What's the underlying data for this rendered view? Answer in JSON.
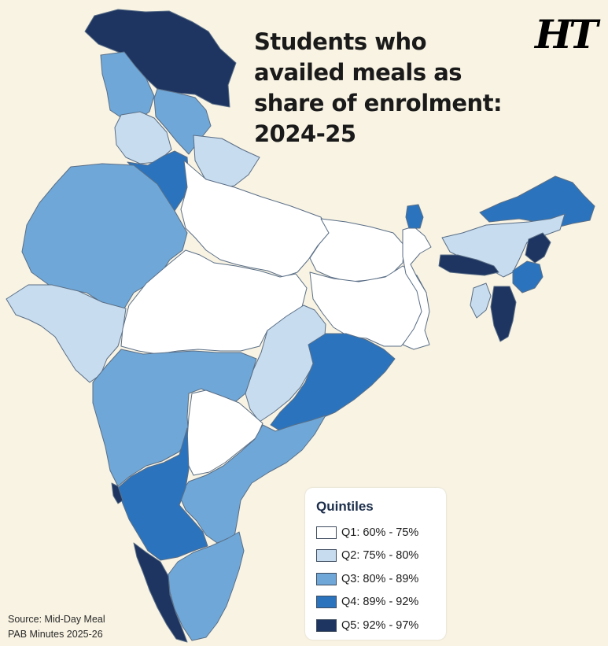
{
  "title_lines": [
    "Students who",
    "availed meals as",
    "share of enrolment:",
    "2024-25"
  ],
  "logo_text": "HT",
  "legend": {
    "title": "Quintiles",
    "items": [
      {
        "label": "Q1: 60% - 75%",
        "color": "#ffffff"
      },
      {
        "label": "Q2: 75% - 80%",
        "color": "#c8dcef"
      },
      {
        "label": "Q3: 80% - 89%",
        "color": "#6fa8d8"
      },
      {
        "label": "Q4: 89% - 92%",
        "color": "#2b74bd"
      },
      {
        "label": "Q5: 92% - 97%",
        "color": "#1e3561"
      }
    ]
  },
  "source_lines": [
    "Source: Mid-Day Meal",
    "PAB Minutes 2025-26"
  ],
  "colors": {
    "background": "#f8f3e3",
    "state_border": "#5a6e86"
  }
}
